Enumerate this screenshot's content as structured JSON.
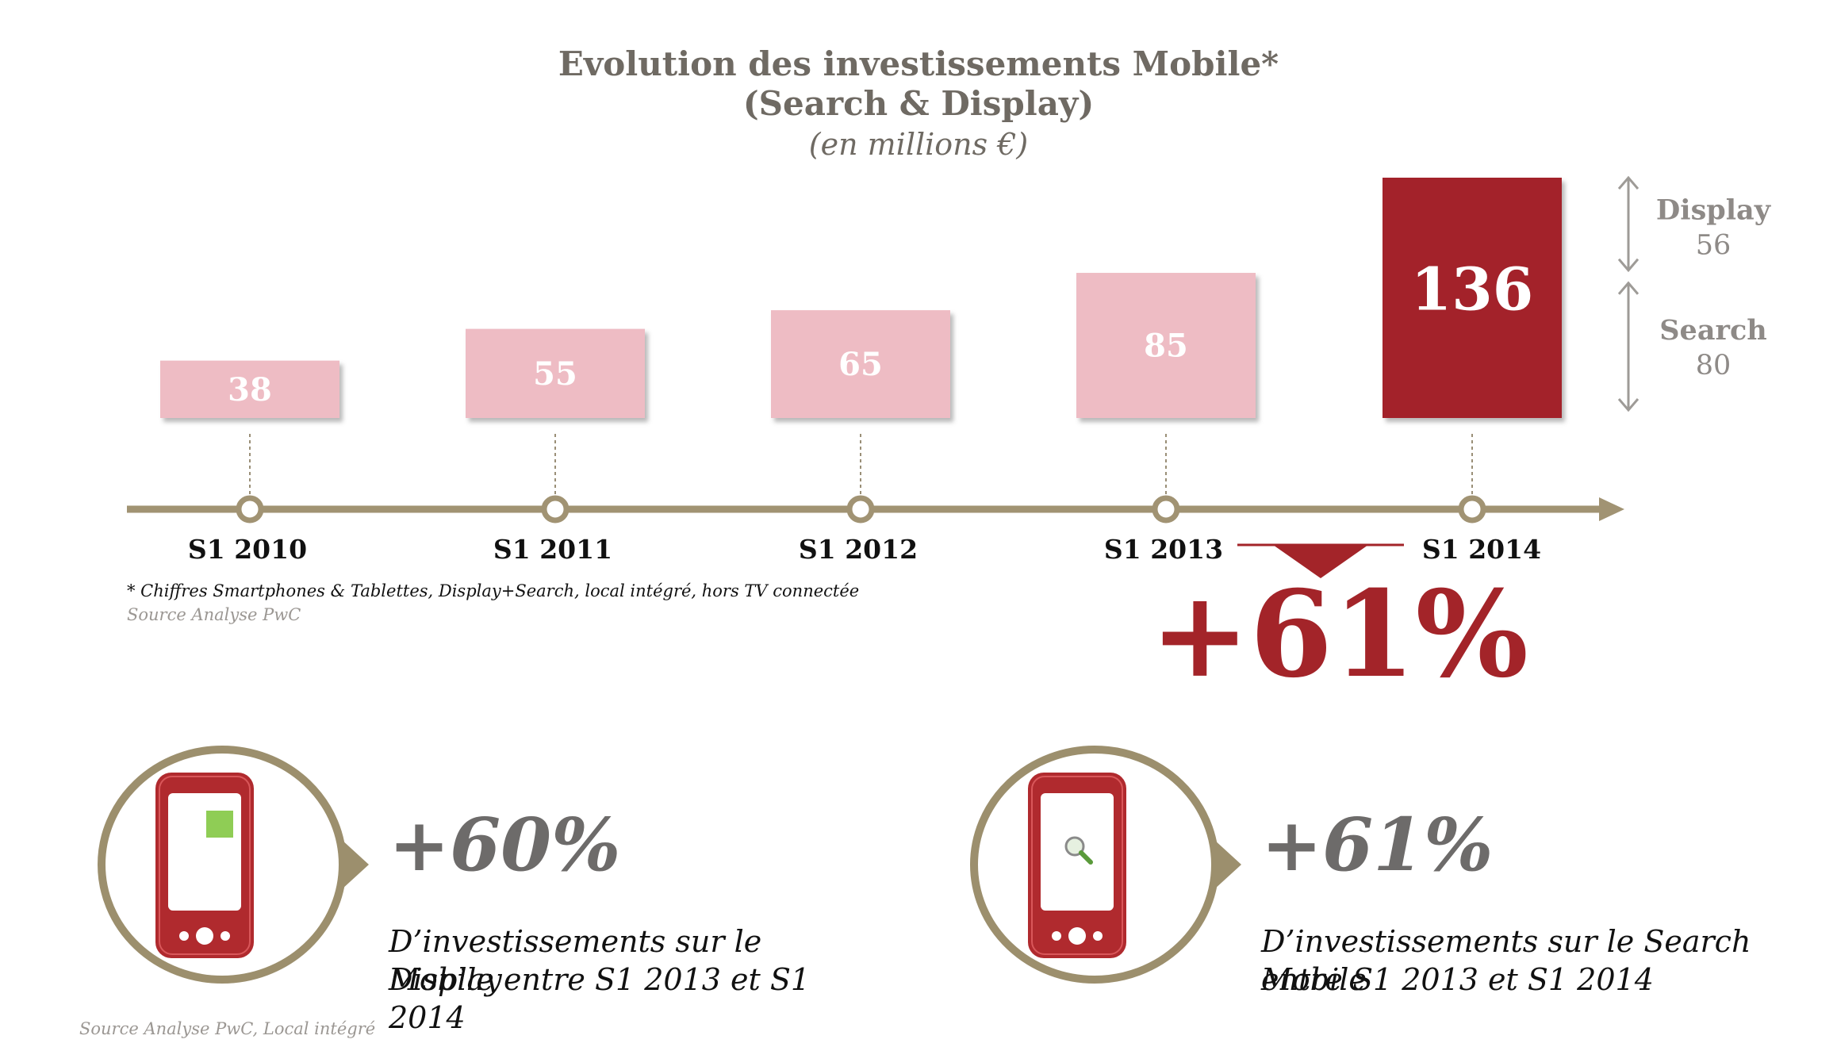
{
  "header": {
    "title_line1": "Evolution des investissements Mobile*",
    "title_line2": "(Search & Display)",
    "unit": "(en millions €)"
  },
  "chart_data": {
    "type": "bar",
    "categories": [
      "S1 2010",
      "S1 2011",
      "S1 2012",
      "S1 2013",
      "S1 2014"
    ],
    "values": [
      38,
      55,
      65,
      85,
      136
    ],
    "value_labels": [
      "38",
      "55",
      "65",
      "85",
      "136"
    ],
    "breakdown": {
      "category": "S1 2014",
      "segments": [
        {
          "name": "Display",
          "value": 56,
          "value_label": "56"
        },
        {
          "name": "Search",
          "value": 80,
          "value_label": "80"
        }
      ]
    },
    "colors": {
      "bar": "#eebcc4",
      "highlight": "#a32429",
      "axis": "#a19373"
    }
  },
  "growth": {
    "label": "+61%"
  },
  "notes": {
    "footnote": "* Chiffres Smartphones & Tablettes, Display+Search, local intégré,  hors TV connectée",
    "source": "Source Analyse PwC",
    "source_bottom": "Source Analyse PwC, Local intégré"
  },
  "stats": [
    {
      "icon": "phone-display-icon",
      "percent": "+60%",
      "desc_line1": "D’investissements sur le Display",
      "desc_line2": "Mobile entre S1 2013 et S1 2014"
    },
    {
      "icon": "phone-search-icon",
      "percent": "+61%",
      "desc_line1": "D’investissements sur le Search Mobile",
      "desc_line2": "entre S1 2013 et S1 2014"
    }
  ]
}
